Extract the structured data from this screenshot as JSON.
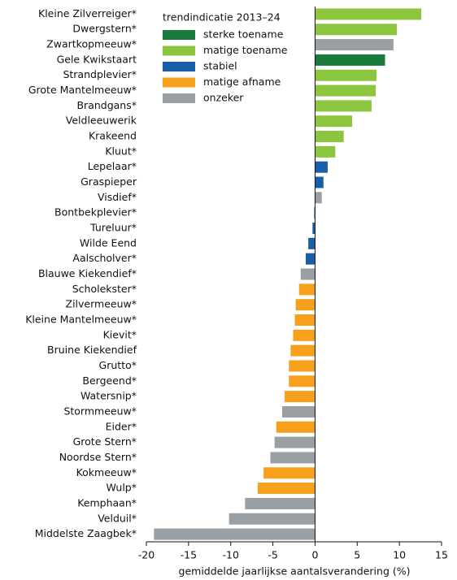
{
  "chart_data": {
    "type": "bar",
    "orientation": "horizontal",
    "x_label": "gemiddelde jaarlijkse aantalsverandering (%)",
    "categories": [
      "Kleine Zilverreiger*",
      "Dwergstern*",
      "Zwartkopmeeuw*",
      "Gele Kwikstaart",
      "Strandplevier*",
      "Grote Mantelmeeuw*",
      "Brandgans*",
      "Veldleeuwerik",
      "Krakeend",
      "Kluut*",
      "Lepelaar*",
      "Graspieper",
      "Visdief*",
      "Bontbekplevier*",
      "Tureluur*",
      "Wilde Eend",
      "Aalscholver*",
      "Blauwe Kiekendief*",
      "Scholekster*",
      "Zilvermeeuw*",
      "Kleine Mantelmeeuw*",
      "Kievit*",
      "Bruine Kiekendief",
      "Grutto*",
      "Bergeend*",
      "Watersnip*",
      "Stormmeeuw*",
      "Eider*",
      "Grote Stern*",
      "Noordse Stern*",
      "Kokmeeuw*",
      "Wulp*",
      "Kemphaan*",
      "Velduil*",
      "Middelste Zaagbek*"
    ],
    "values": [
      12.6,
      9.7,
      9.3,
      8.3,
      7.3,
      7.2,
      6.7,
      4.4,
      3.4,
      2.4,
      1.5,
      1.0,
      0.8,
      -0.1,
      -0.3,
      -0.8,
      -1.1,
      -1.7,
      -1.9,
      -2.3,
      -2.4,
      -2.6,
      -2.9,
      -3.1,
      -3.1,
      -3.6,
      -3.9,
      -4.6,
      -4.8,
      -5.3,
      -6.1,
      -6.8,
      -8.3,
      -10.2,
      -19.1
    ],
    "colors": [
      "#8cc63f",
      "#8cc63f",
      "#9a9fa3",
      "#1a7a3c",
      "#8cc63f",
      "#8cc63f",
      "#8cc63f",
      "#8cc63f",
      "#8cc63f",
      "#8cc63f",
      "#1a5ea8",
      "#1a5ea8",
      "#9a9fa3",
      "#1a5ea8",
      "#1a5ea8",
      "#1a5ea8",
      "#1a5ea8",
      "#9a9fa3",
      "#f7a01b",
      "#f7a01b",
      "#f7a01b",
      "#f7a01b",
      "#f7a01b",
      "#f7a01b",
      "#f7a01b",
      "#f7a01b",
      "#9a9fa3",
      "#f7a01b",
      "#9a9fa3",
      "#9a9fa3",
      "#f7a01b",
      "#f7a01b",
      "#9a9fa3",
      "#9a9fa3",
      "#9a9fa3"
    ],
    "legend": {
      "title": "trendindicatie 2013–24",
      "items": [
        {
          "name": "sterke toename",
          "color": "#1a7a3c"
        },
        {
          "name": "matige toename",
          "color": "#8cc63f"
        },
        {
          "name": "stabiel",
          "color": "#1a5ea8"
        },
        {
          "name": "matige afname",
          "color": "#f7a01b"
        },
        {
          "name": "onzeker",
          "color": "#9a9fa3"
        }
      ]
    },
    "xlim": [
      -20,
      15
    ],
    "xticks": [
      -20,
      -15,
      -10,
      -5,
      0,
      5,
      10,
      15
    ]
  }
}
